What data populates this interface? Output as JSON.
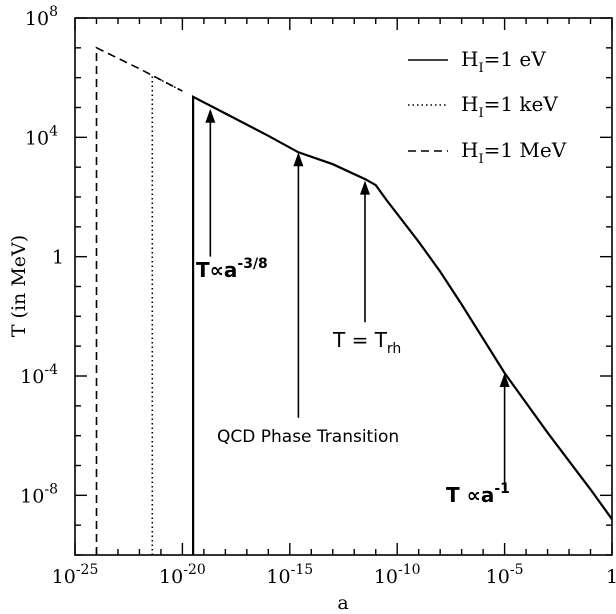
{
  "chart_data": {
    "type": "line",
    "xlabel": "a",
    "ylabel": "T (in MeV)",
    "xscale": "log",
    "yscale": "log",
    "xlim_log10": [
      -25,
      0
    ],
    "ylim_log10": [
      -10,
      8
    ],
    "x_ticks": [
      {
        "base": "10",
        "exp": "-25"
      },
      {
        "base": "10",
        "exp": "-20"
      },
      {
        "base": "10",
        "exp": "-15"
      },
      {
        "base": "10",
        "exp": "-10"
      },
      {
        "base": "10",
        "exp": "-5"
      },
      {
        "base": "1",
        "exp": ""
      }
    ],
    "y_ticks": [
      {
        "base": "10",
        "exp": "-8"
      },
      {
        "base": "10",
        "exp": "-4"
      },
      {
        "base": "1",
        "exp": ""
      },
      {
        "base": "10",
        "exp": "4"
      },
      {
        "base": "10",
        "exp": "8"
      }
    ],
    "legend_position": "top-right",
    "legend": [
      {
        "main": "H",
        "sub": "I",
        "rest": "=1  eV",
        "style": "solid"
      },
      {
        "main": "H",
        "sub": "I",
        "rest": "=1  keV",
        "style": "dotted"
      },
      {
        "main": "H",
        "sub": "I",
        "rest": "=1  MeV",
        "style": "dashed"
      }
    ],
    "common_curve_log": [
      [
        -24.0,
        7.0
      ],
      [
        -22.0,
        6.3
      ],
      [
        -20.0,
        5.55
      ],
      [
        -18.0,
        4.8
      ],
      [
        -16.0,
        4.05
      ],
      [
        -14.6,
        3.5
      ],
      [
        -13.0,
        3.1
      ],
      [
        -11.5,
        2.6
      ],
      [
        -11.0,
        2.4
      ],
      [
        -10.5,
        1.9
      ],
      [
        -9.0,
        0.5
      ],
      [
        -8.0,
        -0.5
      ],
      [
        -7.0,
        -1.6
      ],
      [
        -5.0,
        -3.9
      ],
      [
        -3.0,
        -5.9
      ],
      [
        -1.0,
        -7.8
      ],
      [
        0.0,
        -8.8
      ]
    ],
    "series": [
      {
        "name_ref": "H_I=1 eV",
        "style": "solid",
        "cutoff_log_a": -19.5,
        "start": [
          -19.5,
          5.36
        ]
      },
      {
        "name_ref": "H_I=1 keV",
        "style": "dotted",
        "cutoff_log_a": -21.4,
        "start": [
          -21.4,
          6.07
        ]
      },
      {
        "name_ref": "H_I=1 MeV",
        "style": "dashed",
        "cutoff_log_a": -24.0,
        "start": [
          -24.0,
          7.0
        ]
      }
    ],
    "annotations": [
      {
        "id": "t-a38",
        "text": "T∝a",
        "sup": "-3/8",
        "arrow_tip": [
          -18.7,
          4.96
        ],
        "arrow_tail": [
          -18.7,
          0.0
        ]
      },
      {
        "id": "qcd",
        "text": "QCD Phase Transition",
        "sup": "",
        "arrow_tip": [
          -14.6,
          3.5
        ],
        "arrow_tail": [
          -14.6,
          -5.4
        ]
      },
      {
        "id": "t-trh",
        "text": "T = T",
        "sub": "rh",
        "arrow_tip": [
          -11.5,
          2.55
        ],
        "arrow_tail": [
          -11.5,
          -2.2
        ]
      },
      {
        "id": "t-a1",
        "text": "T ∝a",
        "sup": "-1",
        "arrow_tip": [
          -5.0,
          -3.9
        ],
        "arrow_tail": [
          -5.0,
          -7.8
        ]
      }
    ]
  }
}
